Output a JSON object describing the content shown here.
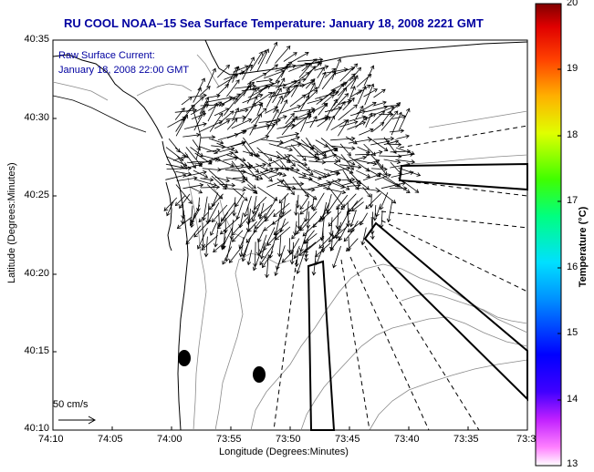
{
  "title": "RU COOL  NOAA–15  Sea Surface Temperature:  January 18, 2008 2221 GMT",
  "subtitle": {
    "line1": "Raw Surface Current:",
    "line2": "January 18, 2008 22:00 GMT"
  },
  "axes": {
    "xlabel": "Longitude (Degrees:Minutes)",
    "ylabel": "Latitude (Degrees:Minutes)",
    "xticks": [
      "74:10",
      "74:05",
      "74:00",
      "73:55",
      "73:50",
      "73:45",
      "73:40",
      "73:35",
      "73:3"
    ],
    "yticks": [
      "40:35",
      "40:30",
      "40:25",
      "40:20",
      "40:15",
      "40:10"
    ]
  },
  "scale_arrow": {
    "label": "50 cm/s"
  },
  "colorbar": {
    "label": "Temperature (°C)",
    "ticks": [
      "20",
      "19",
      "18",
      "17",
      "16",
      "15",
      "14",
      "13"
    ],
    "min": 13,
    "max": 20
  },
  "chart_data": {
    "type": "map",
    "title": "RU COOL  NOAA–15  Sea Surface Temperature:  January 18, 2008 2221 GMT",
    "xlabel": "Longitude (Degrees:Minutes)",
    "ylabel": "Latitude (Degrees:Minutes)",
    "xlim": [
      -74.1667,
      -73.5
    ],
    "ylim": [
      40.1667,
      40.5833
    ],
    "colorbar_range": [
      13,
      20
    ],
    "features": [
      "coastline",
      "bathymetry contours",
      "surface current vectors",
      "shipping lane boundaries"
    ]
  }
}
